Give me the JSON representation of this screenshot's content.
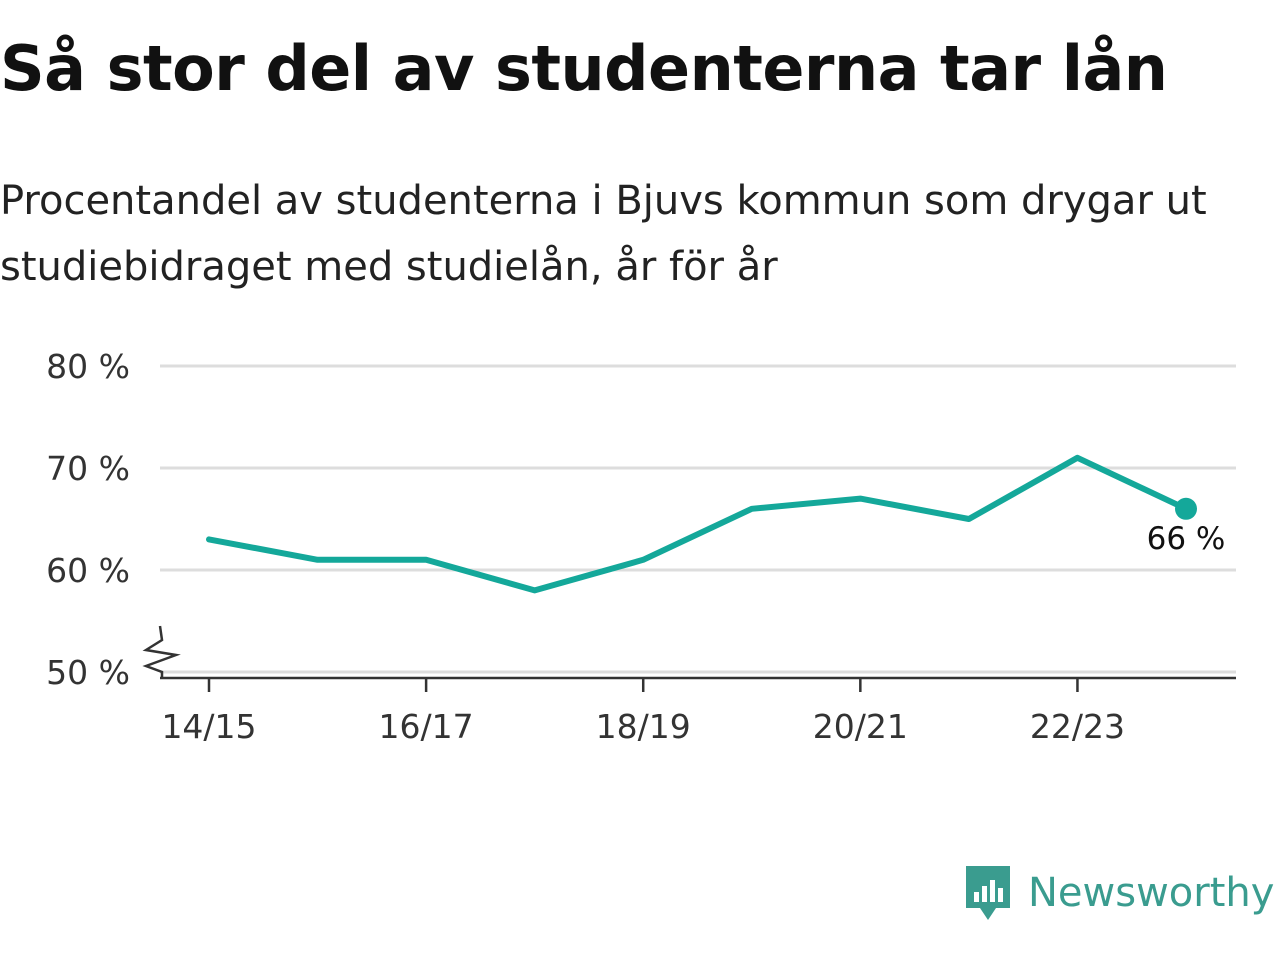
{
  "title": "Så stor del av studenterna tar lån",
  "subtitle": "Procentandel av studenterna i Bjuvs kommun som drygar ut studiebidraget med studielån, år för år",
  "brand": {
    "name": "Newsworthy",
    "icon": "newsworthy-logo-icon"
  },
  "colors": {
    "line": "#14a89a",
    "grid": "#dddddd",
    "axis": "#333333",
    "brand": "#3a9c8f"
  },
  "chart_data": {
    "type": "line",
    "title": "Så stor del av studenterna tar lån",
    "subtitle": "Procentandel av studenterna i Bjuvs kommun som drygar ut studiebidraget med studielån, år för år",
    "xlabel": "",
    "ylabel": "",
    "categories": [
      "14/15",
      "15/16",
      "16/17",
      "17/18",
      "18/19",
      "19/20",
      "20/21",
      "21/22",
      "22/23",
      "23/24"
    ],
    "x_tick_labels": [
      "14/15",
      "16/17",
      "18/19",
      "20/21",
      "22/23"
    ],
    "series": [
      {
        "values": [
          63,
          61,
          61,
          58,
          61,
          66,
          67,
          65,
          71,
          66
        ]
      }
    ],
    "ylim": [
      50,
      80
    ],
    "y_ticks": [
      50,
      60,
      70,
      80
    ],
    "y_tick_labels": [
      "50 %",
      "60 %",
      "70 %",
      "80 %"
    ],
    "y_axis_break": true,
    "grid": true,
    "last_value_label": "66 %"
  }
}
